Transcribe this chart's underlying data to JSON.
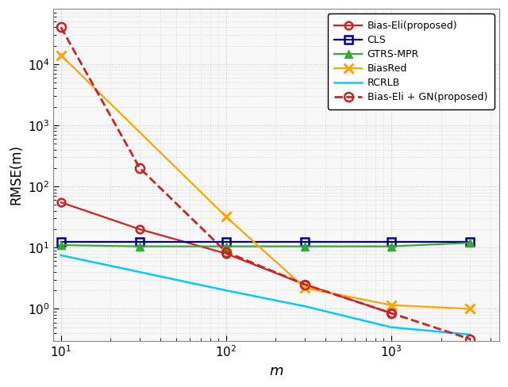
{
  "bias_eli_x": [
    10,
    30,
    100,
    300,
    1000
  ],
  "bias_eli_y": [
    55,
    20,
    8,
    2.5,
    0.85
  ],
  "cls_x": [
    10,
    30,
    100,
    300,
    1000,
    3000
  ],
  "cls_y": [
    12.5,
    12.5,
    12.5,
    12.5,
    12.5,
    12.5
  ],
  "gtrs_mpr_x": [
    10,
    30,
    100,
    300,
    1000,
    3000
  ],
  "gtrs_mpr_y": [
    11.0,
    10.5,
    10.5,
    10.5,
    10.5,
    12.0
  ],
  "biasred_x": [
    10,
    100,
    300,
    1000,
    3000
  ],
  "biasred_y": [
    14000,
    32,
    2.2,
    1.15,
    1.0
  ],
  "rcrlb_x": [
    10,
    100,
    300,
    1000,
    3000
  ],
  "rcrlb_y": [
    7.5,
    2.0,
    1.1,
    0.5,
    0.38
  ],
  "gn_x": [
    10,
    30,
    100,
    300,
    1000,
    3000
  ],
  "gn_y": [
    40000,
    200,
    8.5,
    2.5,
    0.85,
    0.32
  ],
  "bias_eli_color": "#CC2222",
  "cls_color": "#00008B",
  "gtrs_mpr_color": "#33AA33",
  "biasred_color": "#FFA500",
  "rcrlb_color": "#00CCFF",
  "bias_eli_gn_color": "#CC2222",
  "ylabel": "RMSE(m)",
  "xlabel": "m",
  "ylim_low": 0.3,
  "ylim_high": 80000,
  "xlim_low": 9,
  "xlim_high": 4500,
  "bg_color": "#f8f8f8",
  "grid_color": "#cccccc",
  "legend_labels": [
    "Bias-Eli(proposed)",
    "CLS",
    "GTRS-MPR",
    "BiasRed",
    "RCRLB",
    "Bias-Eli + GN(proposed)"
  ]
}
